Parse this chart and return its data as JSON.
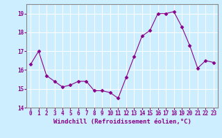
{
  "x": [
    0,
    1,
    2,
    3,
    4,
    5,
    6,
    7,
    8,
    9,
    10,
    11,
    12,
    13,
    14,
    15,
    16,
    17,
    18,
    19,
    20,
    21,
    22,
    23
  ],
  "y": [
    16.3,
    17.0,
    15.7,
    15.4,
    15.1,
    15.2,
    15.4,
    15.4,
    14.9,
    14.9,
    14.8,
    14.5,
    15.6,
    16.7,
    17.8,
    18.1,
    19.0,
    19.0,
    19.1,
    18.3,
    17.3,
    16.1,
    16.5,
    16.4
  ],
  "ylim": [
    14,
    19.5
  ],
  "yticks": [
    14,
    15,
    16,
    17,
    18,
    19
  ],
  "xlim": [
    -0.5,
    23.5
  ],
  "xticks": [
    0,
    1,
    2,
    3,
    4,
    5,
    6,
    7,
    8,
    9,
    10,
    11,
    12,
    13,
    14,
    15,
    16,
    17,
    18,
    19,
    20,
    21,
    22,
    23
  ],
  "xlabel": "Windchill (Refroidissement éolien,°C)",
  "line_color": "#880088",
  "marker": "D",
  "marker_size": 2.5,
  "bg_color": "#cceeff",
  "grid_color": "#aacccc",
  "label_fontsize": 6.5,
  "tick_fontsize": 5.5
}
